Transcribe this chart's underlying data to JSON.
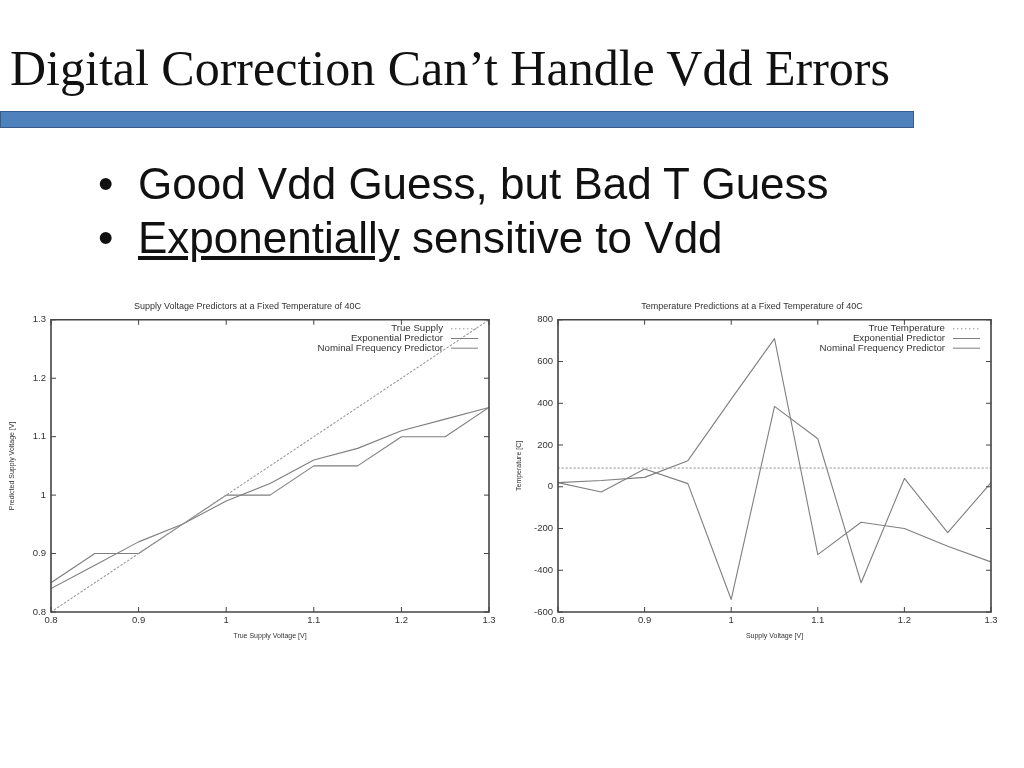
{
  "chart_data": [
    {
      "type": "other",
      "title": "Digital Correction Can’t Handle Vdd Errors",
      "annotations": [
        "• Good Vdd Guess, but Bad T Guess",
        "• Exponentially sensitive to Vdd"
      ]
    },
    {
      "type": "line",
      "title": "Supply Voltage Predictors at a Fixed Temperature of 40C",
      "xlabel": "True Supply Voltage [V]",
      "ylabel": "Predicted Supply Voltage [V]",
      "x": [
        0.8,
        0.85,
        0.9,
        0.95,
        1.0,
        1.05,
        1.1,
        1.15,
        1.2,
        1.25,
        1.3
      ],
      "series": [
        {
          "name": "True Supply",
          "color": "#9a9a9a",
          "line_style": "dotted",
          "values": [
            0.8,
            0.85,
            0.9,
            0.95,
            1.0,
            1.05,
            1.1,
            1.15,
            1.2,
            1.25,
            1.3
          ]
        },
        {
          "name": "Exponential Predictor",
          "color": "#7f7f7f",
          "values": [
            0.84,
            0.88,
            0.92,
            0.95,
            0.99,
            1.02,
            1.06,
            1.08,
            1.11,
            1.13,
            1.15
          ]
        },
        {
          "name": "Nominal Frequency Predictor",
          "color": "#7f7f7f",
          "values": [
            0.85,
            0.9,
            0.9,
            0.95,
            1.0,
            1.0,
            1.05,
            1.05,
            1.1,
            1.1,
            1.15
          ]
        }
      ],
      "xlim": [
        0.8,
        1.3
      ],
      "xticks": [
        0.8,
        0.9,
        1,
        1.1,
        1.2,
        1.3
      ],
      "ylim": [
        0.8,
        1.3
      ],
      "yticks": [
        0.8,
        0.9,
        1,
        1.1,
        1.2,
        1.3
      ],
      "legend": "top right"
    },
    {
      "type": "line",
      "title": "Temperature Predictions at a Fixed Temperature of 40C",
      "xlabel": "Supply Voltage [V]",
      "ylabel": "Temperature [C]",
      "x": [
        0.8,
        0.85,
        0.9,
        0.95,
        1.0,
        1.05,
        1.1,
        1.15,
        1.2,
        1.25,
        1.3
      ],
      "series": [
        {
          "name": "True Temperature",
          "color": "#9a9a9a",
          "line_style": "dotted",
          "values": [
            90,
            90,
            90,
            90,
            90,
            90,
            90,
            90,
            90,
            90,
            90
          ]
        },
        {
          "name": "Exponential Predictor",
          "color": "#7f7f7f",
          "values": [
            20,
            30,
            45,
            125,
            420,
            710,
            -325,
            -170,
            -200,
            -285,
            -360
          ]
        },
        {
          "name": "Nominal Frequency Predictor",
          "color": "#7f7f7f",
          "values": [
            20,
            -25,
            85,
            15,
            -540,
            385,
            230,
            -460,
            40,
            -220,
            20
          ]
        }
      ],
      "xlim": [
        0.8,
        1.3
      ],
      "xticks": [
        0.8,
        0.9,
        1,
        1.1,
        1.2,
        1.3
      ],
      "ylim": [
        -600,
        800
      ],
      "yticks": [
        -600,
        -400,
        -200,
        0,
        200,
        400,
        600,
        800
      ],
      "legend": "top right"
    }
  ]
}
